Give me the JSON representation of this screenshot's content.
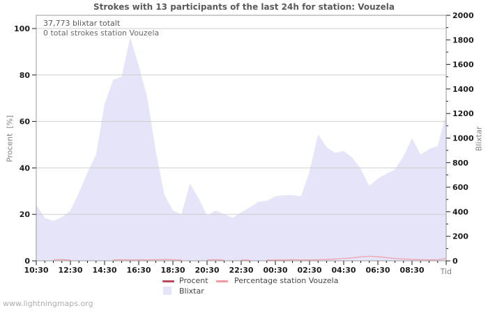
{
  "title": "Strokes with 13 participants of the last 24h for station: Vouzela",
  "annotations": {
    "line1": "37,773 blixtar totalt",
    "line2": "0 total strokes station Vouzela"
  },
  "watermark": "www.lightningmaps.org",
  "colors": {
    "area_fill": "#e5e4f9",
    "procent_line": "#b8495c",
    "percentage_line": "#f09ba1",
    "gridline": "#cdcdcd",
    "frame": "#999999",
    "tick": "#1a1a1a"
  },
  "axes": {
    "left": {
      "title": "Procent  [%]",
      "ticks": [
        0,
        20,
        40,
        60,
        80,
        100
      ],
      "range": [
        0,
        100
      ]
    },
    "right": {
      "title": "Blixtar",
      "major_ticks": [
        0,
        200,
        400,
        600,
        800,
        1000,
        1200,
        1400,
        1600,
        1800,
        2000
      ],
      "minor_step": 100,
      "range": [
        0,
        2000
      ]
    },
    "x": {
      "title": "Tid",
      "major_labels": [
        "10:30",
        "12:30",
        "14:30",
        "16:30",
        "18:30",
        "20:30",
        "22:30",
        "00:30",
        "02:30",
        "04:30",
        "06:30",
        "08:30"
      ],
      "minor_step_minutes": 30
    }
  },
  "legend": {
    "procent": {
      "label": "Procent"
    },
    "percentage_station": {
      "label": "Percentage station Vouzela"
    },
    "blixtar": {
      "label": "Blixtar"
    }
  },
  "chart_data": {
    "type": "area",
    "title": "Strokes with 13 participants of the last 24h for station: Vouzela",
    "xlabel": "Tid",
    "ylabel_left": "Procent [%]",
    "ylabel_right": "Blixtar",
    "ylim_left": [
      0,
      100
    ],
    "ylim_right": [
      0,
      2000
    ],
    "grid": true,
    "legend_position": "bottom",
    "x": [
      "10:30",
      "11:00",
      "11:30",
      "12:00",
      "12:30",
      "13:00",
      "13:30",
      "14:00",
      "14:30",
      "15:00",
      "15:30",
      "16:00",
      "16:30",
      "17:00",
      "17:30",
      "18:00",
      "18:30",
      "19:00",
      "19:30",
      "20:00",
      "20:30",
      "21:00",
      "21:30",
      "22:00",
      "22:30",
      "23:00",
      "23:30",
      "00:00",
      "00:30",
      "01:00",
      "01:30",
      "02:00",
      "02:30",
      "03:00",
      "03:30",
      "04:00",
      "04:30",
      "05:00",
      "05:30",
      "06:00",
      "06:30",
      "07:00",
      "07:30",
      "08:00",
      "08:30",
      "09:00",
      "09:30",
      "10:00",
      "10:30"
    ],
    "series": [
      {
        "name": "Blixtar",
        "type": "area",
        "axis": "right",
        "values": [
          455,
          350,
          325,
          355,
          410,
          555,
          720,
          865,
          1275,
          1475,
          1500,
          1820,
          1590,
          1330,
          890,
          540,
          410,
          380,
          630,
          510,
          370,
          410,
          380,
          350,
          395,
          435,
          480,
          490,
          525,
          535,
          535,
          525,
          730,
          1030,
          925,
          880,
          895,
          840,
          750,
          610,
          670,
          710,
          745,
          850,
          1000,
          865,
          910,
          935,
          1205
        ]
      },
      {
        "name": "Percentage station Vouzela",
        "type": "line",
        "axis": "left",
        "values": [
          0,
          0,
          0.4,
          0.6,
          0.3,
          0,
          0,
          0,
          0,
          0.4,
          0.5,
          0.4,
          0.5,
          0.4,
          0.5,
          0.6,
          0.5,
          0.3,
          0,
          0,
          0.4,
          0.5,
          0.3,
          0,
          0.4,
          0.3,
          0,
          0.3,
          0.4,
          0.3,
          0.5,
          0.4,
          0.4,
          0.5,
          0.6,
          0.8,
          1.0,
          1.3,
          1.7,
          2.0,
          1.8,
          1.4,
          1.0,
          0.8,
          0.6,
          0.5,
          0.4,
          0.5,
          1.0
        ]
      },
      {
        "name": "Procent",
        "type": "line",
        "axis": "left",
        "values": [
          0,
          0,
          0,
          0,
          0,
          0,
          0,
          0,
          0,
          0,
          0,
          0,
          0,
          0,
          0,
          0,
          0,
          0,
          0,
          0,
          0,
          0,
          0,
          0,
          0,
          0,
          0,
          0,
          0,
          0,
          0,
          0,
          0,
          0,
          0,
          0,
          0,
          0,
          0,
          0,
          0,
          0,
          0,
          0,
          0,
          0,
          0,
          0,
          0
        ]
      }
    ]
  }
}
